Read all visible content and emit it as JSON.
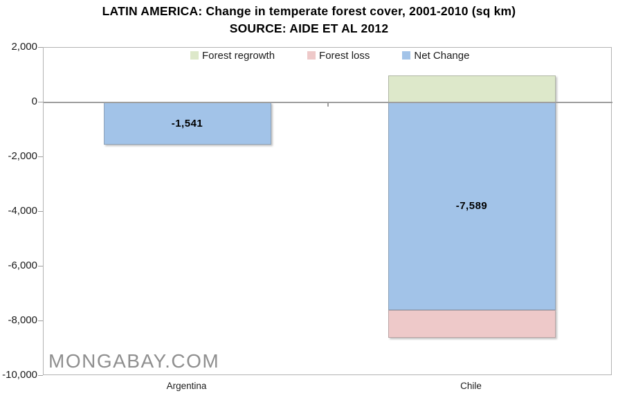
{
  "title": {
    "line1": "LATIN AMERICA: Change in temperate forest cover, 2001-2010 (sq km)",
    "line2": "SOURCE: AIDE ET AL 2012"
  },
  "watermark": "MONGABAY.COM",
  "legend": [
    {
      "label": "Forest regrowth",
      "color": "#dde8ca"
    },
    {
      "label": "Forest loss",
      "color": "#eec9c9"
    },
    {
      "label": "Net Change",
      "color": "#a2c3e8"
    }
  ],
  "axis": {
    "ymin": -10000,
    "ymax": 2000,
    "yticks": [
      {
        "value": 2000,
        "label": "2,000"
      },
      {
        "value": 0,
        "label": "0"
      },
      {
        "value": -2000,
        "label": "-2,000"
      },
      {
        "value": -4000,
        "label": "-4,000"
      },
      {
        "value": -6000,
        "label": "-6,000"
      },
      {
        "value": -8000,
        "label": "-8,000"
      },
      {
        "value": -10000,
        "label": "-10,000"
      }
    ]
  },
  "chart_data": {
    "type": "bar",
    "stacked": true,
    "title": "LATIN AMERICA: Change in temperate forest cover, 2001-2010 (sq km)",
    "subtitle": "SOURCE: AIDE ET AL 2012",
    "categories": [
      "Argentina",
      "Chile"
    ],
    "series": [
      {
        "name": "Forest regrowth",
        "color": "#dde8ca",
        "values": [
          0,
          1000
        ]
      },
      {
        "name": "Forest loss",
        "color": "#eec9c9",
        "values": [
          0,
          -8600
        ]
      },
      {
        "name": "Net Change",
        "color": "#a2c3e8",
        "values": [
          -1541,
          -7589
        ]
      }
    ],
    "bar_segments": [
      {
        "category": "Argentina",
        "segments": [
          {
            "series": "Net Change",
            "from": 0,
            "to": -1541,
            "label": "-1,541",
            "color": "#a2c3e8"
          }
        ]
      },
      {
        "category": "Chile",
        "segments": [
          {
            "series": "Forest regrowth",
            "from": 1000,
            "to": 0,
            "color": "#dde8ca"
          },
          {
            "series": "Net Change",
            "from": 0,
            "to": -7589,
            "label": "-7,589",
            "color": "#a2c3e8"
          },
          {
            "series": "Forest loss",
            "from": -7589,
            "to": -8600,
            "color": "#eec9c9"
          }
        ]
      }
    ],
    "ylim": [
      -10000,
      2000
    ],
    "ytick_labels": [
      "2,000",
      "0",
      "-2,000",
      "-4,000",
      "-6,000",
      "-8,000",
      "-10,000"
    ],
    "legend_position": "top-inside",
    "grid": "zero-line-only",
    "xlabel": "",
    "ylabel": ""
  }
}
